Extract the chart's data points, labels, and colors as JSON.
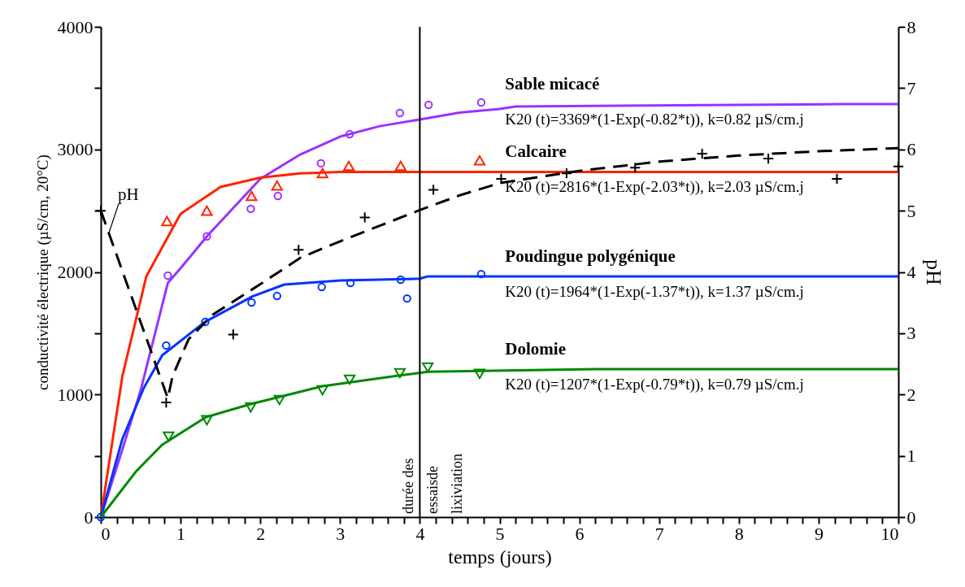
{
  "chart_data": {
    "type": "line",
    "xlabel": "temps (jours)",
    "ylabel": "conductivité électrique (µS/cm, 20°C)",
    "y2label": "pH",
    "xlim": [
      0,
      10
    ],
    "ylim": [
      0,
      4000
    ],
    "y2lim": [
      0,
      8
    ],
    "xticks": [
      0,
      {
        "value": 0.2,
        "label": null
      },
      {
        "value": 0.4,
        "label": null
      },
      {
        "value": 0.6,
        "label": null
      },
      {
        "value": 0.8,
        "label": null
      },
      1,
      {
        "value": 1.2,
        "label": null
      },
      {
        "value": 1.4,
        "label": null
      },
      {
        "value": 1.6,
        "label": null
      },
      {
        "value": 1.8,
        "label": null
      },
      2,
      {
        "value": 2.2,
        "label": null
      },
      {
        "value": 2.4,
        "label": null
      },
      {
        "value": 2.6,
        "label": null
      },
      {
        "value": 2.8,
        "label": null
      },
      3,
      {
        "value": 3.2,
        "label": null
      },
      {
        "value": 3.4,
        "label": null
      },
      {
        "value": 3.6,
        "label": null
      },
      {
        "value": 3.8,
        "label": null
      },
      4,
      {
        "value": 4.2,
        "label": null
      },
      {
        "value": 4.4,
        "label": null
      },
      {
        "value": 4.6,
        "label": null
      },
      {
        "value": 4.8,
        "label": null
      },
      5,
      {
        "value": 5.2,
        "label": null
      },
      {
        "value": 5.4,
        "label": null
      },
      {
        "value": 5.6,
        "label": null
      },
      {
        "value": 5.8,
        "label": null
      },
      6,
      {
        "value": 6.2,
        "label": null
      },
      {
        "value": 6.4,
        "label": null
      },
      {
        "value": 6.6,
        "label": null
      },
      {
        "value": 6.8,
        "label": null
      },
      7,
      {
        "value": 7.2,
        "label": null
      },
      {
        "value": 7.4,
        "label": null
      },
      {
        "value": 7.6,
        "label": null
      },
      {
        "value": 7.8,
        "label": null
      },
      8,
      {
        "value": 8.2,
        "label": null
      },
      {
        "value": 8.4,
        "label": null
      },
      {
        "value": 8.6,
        "label": null
      },
      {
        "value": 8.8,
        "label": null
      },
      9,
      {
        "value": 9.2,
        "label": null
      },
      {
        "value": 9.4,
        "label": null
      },
      {
        "value": 9.6,
        "label": null
      },
      {
        "value": 9.8,
        "label": null
      },
      10
    ],
    "yticks": [
      0,
      {
        "value": 500,
        "label": null
      },
      1000,
      {
        "value": 1500,
        "label": null
      },
      2000,
      {
        "value": 2500,
        "label": null
      },
      3000,
      {
        "value": 3500,
        "label": null
      },
      4000
    ],
    "y2ticks": [
      0,
      1,
      2,
      3,
      4,
      5,
      6,
      7,
      8
    ],
    "series": [
      {
        "name": "Sable  micacé",
        "color": "#9933ff",
        "x": [
          0,
          0.27,
          0.5,
          0.84,
          1,
          1.33,
          2,
          2.5,
          3,
          3.5,
          4,
          4.5,
          5,
          5.2,
          9.3,
          10
        ],
        "values": [
          0,
          550,
          1035,
          1910,
          2030,
          2290,
          2760,
          2958,
          3104,
          3190,
          3244,
          3300,
          3330,
          3350,
          3369,
          3369
        ]
      },
      {
        "type": "scatter",
        "color": "#9933ff",
        "marker": "circle",
        "x": [
          0.84,
          1.33,
          1.88,
          2.22,
          2.76,
          3.12,
          3.75,
          4.11,
          4.77
        ],
        "values": [
          1970,
          2290,
          2515,
          2620,
          2886,
          3124,
          3297,
          3363,
          3383
        ]
      },
      {
        "name": "Calcaire",
        "color": "#ff2200",
        "x": [
          0,
          0.27,
          0.57,
          1,
          1.5,
          2,
          2.5,
          3,
          10
        ],
        "values": [
          0,
          1148,
          1963,
          2474,
          2693,
          2770,
          2805,
          2816,
          2816
        ]
      },
      {
        "type": "scatter",
        "color": "#ff2200",
        "marker": "triangle",
        "x": [
          0.83,
          1.33,
          1.89,
          2.21,
          2.78,
          3.11,
          3.76,
          4.75
        ],
        "values": [
          2415,
          2500,
          2620,
          2705,
          2806,
          2866,
          2866,
          2910
        ]
      },
      {
        "name": "Poudingue polygénique",
        "color": "#0033ff",
        "x": [
          0,
          0.27,
          0.54,
          0.77,
          1.3,
          1.9,
          2.3,
          3,
          4,
          4.1,
          10
        ],
        "values": [
          0,
          637,
          1055,
          1320,
          1590,
          1800,
          1897,
          1930,
          1945,
          1964,
          1964
        ]
      },
      {
        "type": "scatter",
        "color": "#0033ff",
        "marker": "circle",
        "x": [
          0,
          0.82,
          1.31,
          1.89,
          2.21,
          2.77,
          3.13,
          3.76,
          3.84,
          4.77
        ],
        "values": [
          0,
          1400,
          1592,
          1751,
          1804,
          1877,
          1910,
          1937,
          1784,
          1983
        ]
      },
      {
        "name": "Dolomie",
        "color": "#008800",
        "x": [
          0,
          0.44,
          0.77,
          1.32,
          1.88,
          2.78,
          3.73,
          4.1,
          6.2,
          10
        ],
        "values": [
          0,
          371,
          590,
          816,
          922,
          1068,
          1154,
          1185,
          1207,
          1207
        ]
      },
      {
        "type": "scatter",
        "color": "#008800",
        "marker": "triangle-down",
        "x": [
          0.85,
          1.33,
          1.88,
          2.24,
          2.78,
          3.12,
          3.75,
          4.1,
          4.75
        ],
        "values": [
          657,
          790,
          895,
          955,
          1035,
          1121,
          1174,
          1221,
          1168
        ]
      },
      {
        "name": "pH",
        "axis": "y2",
        "color": "#000000",
        "line_style": "dashed",
        "x": [
          0,
          0.84,
          0.9,
          1.1,
          1.4,
          2,
          2.5,
          3,
          4,
          4.5,
          5,
          6,
          7,
          8,
          9,
          10
        ],
        "values": [
          5,
          1.94,
          2.3,
          2.9,
          3.3,
          3.8,
          4.23,
          4.5,
          5.01,
          5.25,
          5.45,
          5.65,
          5.8,
          5.9,
          5.97,
          6.02
        ]
      },
      {
        "type": "scatter",
        "axis": "y2",
        "color": "#000000",
        "marker": "cross",
        "x": [
          0,
          0.82,
          1.66,
          2.48,
          3.31,
          4.17,
          5.02,
          5.84,
          6.7,
          7.54,
          8.37,
          9.23,
          10
        ],
        "values": [
          5,
          1.87,
          2.98,
          4.36,
          4.89,
          5.34,
          5.52,
          5.61,
          5.7,
          5.93,
          5.85,
          5.52,
          5.72
        ]
      }
    ],
    "ref_lines": [
      {
        "axis": "x",
        "value": 4,
        "label": "durée des\nessaisde\nlixiviation",
        "color": "#000000"
      }
    ],
    "annotations": [
      "K20 (t)=3369*(1-Exp(-0.82*t)), k=0.82 µS/cm.j",
      "K20 (t)=2816*(1-Exp(-2.03*t)), k=2.03 µS/cm.j",
      "K20 (t)=1964*(1-Exp(-1.37*t)), k=1.37 µS/cm.j",
      "K20 (t)=1207*(1-Exp(-0.79*t)), k=0.79 µS/cm.j"
    ]
  }
}
